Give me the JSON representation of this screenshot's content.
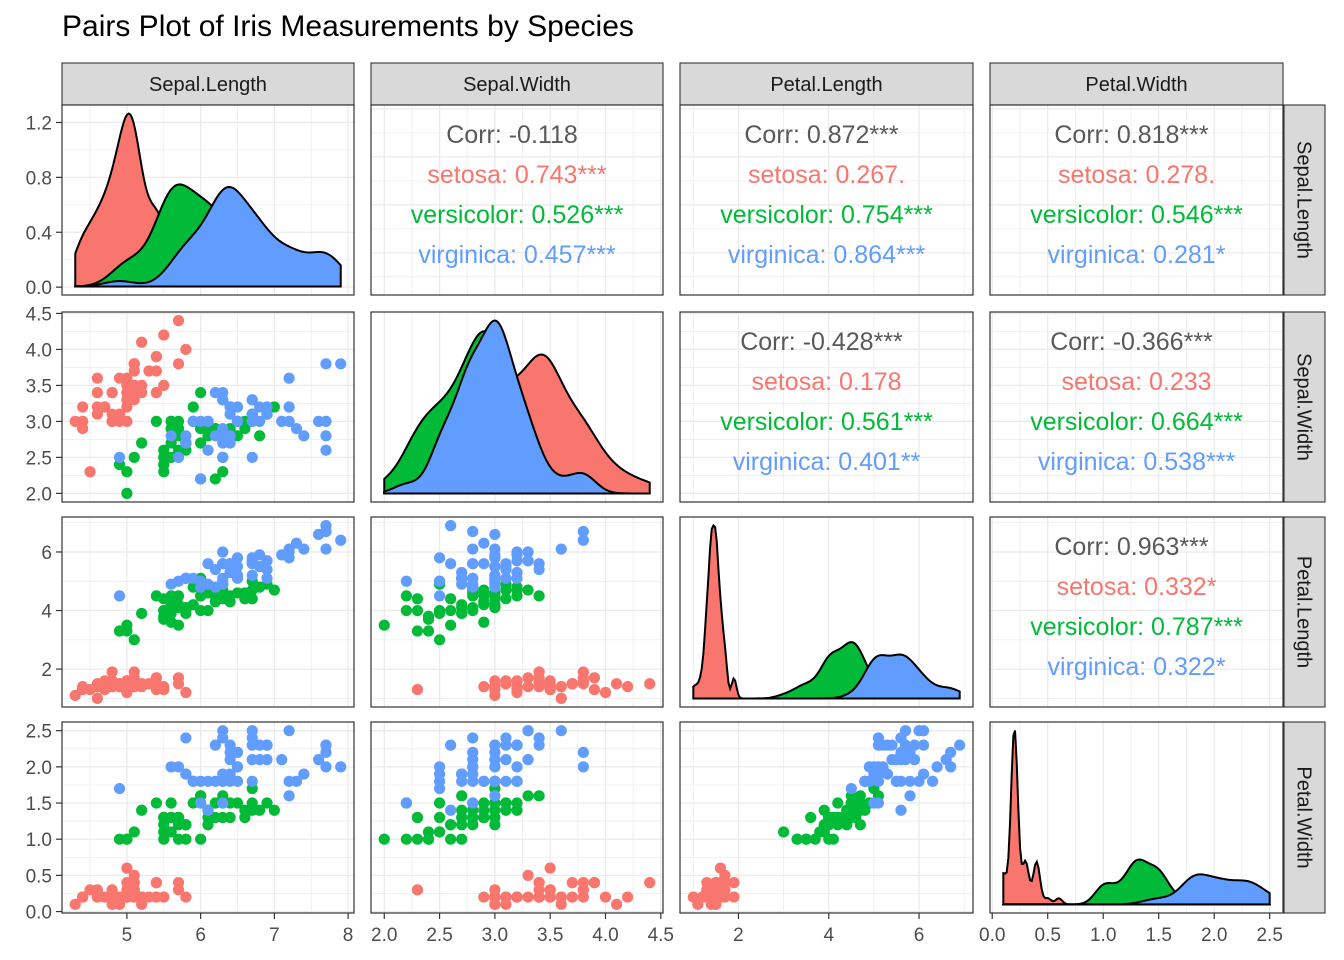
{
  "chart_data": {
    "type": "scatter",
    "title": "Pairs Plot of Iris Measurements by Species",
    "variables": [
      "Sepal.Length",
      "Sepal.Width",
      "Petal.Length",
      "Petal.Width"
    ],
    "species": [
      {
        "name": "setosa",
        "color": "#F8766D"
      },
      {
        "name": "versicolor",
        "color": "#00BA38"
      },
      {
        "name": "virginica",
        "color": "#619CFF"
      }
    ],
    "axes": {
      "Sepal.Length": {
        "range": [
          4.3,
          7.9
        ],
        "ticks": [
          5,
          6,
          7,
          8
        ],
        "tick_labels": [
          "5",
          "6",
          "7",
          "8"
        ]
      },
      "Sepal.Width": {
        "range": [
          2.0,
          4.4
        ],
        "ticks": [
          2.0,
          2.5,
          3.0,
          3.5,
          4.0,
          4.5
        ],
        "tick_labels": [
          "2.0",
          "2.5",
          "3.0",
          "3.5",
          "4.0",
          "4.5"
        ]
      },
      "Petal.Length": {
        "range": [
          1.0,
          6.9
        ],
        "ticks": [
          2,
          4,
          6
        ],
        "tick_labels": [
          "2",
          "4",
          "6"
        ]
      },
      "Petal.Width": {
        "range": [
          0.1,
          2.5
        ],
        "ticks": [
          0.0,
          0.5,
          1.0,
          1.5,
          2.0,
          2.5
        ],
        "tick_labels": [
          "0.0",
          "0.5",
          "1.0",
          "1.5",
          "2.0",
          "2.5"
        ]
      }
    },
    "density_axis": {
      "range": [
        0,
        1.27
      ],
      "ticks": [
        0.0,
        0.4,
        0.8,
        1.2
      ],
      "tick_labels": [
        "0.0",
        "0.4",
        "0.8",
        "1.2"
      ]
    },
    "correlations": [
      {
        "row": "Sepal.Length",
        "col": "Sepal.Width",
        "overall": "Corr: -0.118",
        "setosa": "setosa: 0.743***",
        "versicolor": "versicolor: 0.526***",
        "virginica": "virginica: 0.457***"
      },
      {
        "row": "Sepal.Length",
        "col": "Petal.Length",
        "overall": "Corr: 0.872***",
        "setosa": "setosa: 0.267.",
        "versicolor": "versicolor: 0.754***",
        "virginica": "virginica: 0.864***"
      },
      {
        "row": "Sepal.Length",
        "col": "Petal.Width",
        "overall": "Corr: 0.818***",
        "setosa": "setosa: 0.278.",
        "versicolor": "versicolor: 0.546***",
        "virginica": "virginica: 0.281*"
      },
      {
        "row": "Sepal.Width",
        "col": "Petal.Length",
        "overall": "Corr: -0.428***",
        "setosa": "setosa: 0.178",
        "versicolor": "versicolor: 0.561***",
        "virginica": "virginica: 0.401**"
      },
      {
        "row": "Sepal.Width",
        "col": "Petal.Width",
        "overall": "Corr: -0.366***",
        "setosa": "setosa: 0.233",
        "versicolor": "versicolor: 0.664***",
        "virginica": "virginica: 0.538***"
      },
      {
        "row": "Petal.Length",
        "col": "Petal.Width",
        "overall": "Corr: 0.963***",
        "setosa": "setosa: 0.332*",
        "versicolor": "versicolor: 0.787***",
        "virginica": "virginica: 0.322*"
      }
    ],
    "data": {
      "setosa": [
        [
          5.1,
          3.5,
          1.4,
          0.2
        ],
        [
          4.9,
          3.0,
          1.4,
          0.2
        ],
        [
          4.7,
          3.2,
          1.3,
          0.2
        ],
        [
          4.6,
          3.1,
          1.5,
          0.2
        ],
        [
          5.0,
          3.6,
          1.4,
          0.2
        ],
        [
          5.4,
          3.9,
          1.7,
          0.4
        ],
        [
          4.6,
          3.4,
          1.4,
          0.3
        ],
        [
          5.0,
          3.4,
          1.5,
          0.2
        ],
        [
          4.4,
          2.9,
          1.4,
          0.2
        ],
        [
          4.9,
          3.1,
          1.5,
          0.1
        ],
        [
          5.4,
          3.7,
          1.5,
          0.2
        ],
        [
          4.8,
          3.4,
          1.6,
          0.2
        ],
        [
          4.8,
          3.0,
          1.4,
          0.1
        ],
        [
          4.3,
          3.0,
          1.1,
          0.1
        ],
        [
          5.8,
          4.0,
          1.2,
          0.2
        ],
        [
          5.7,
          4.4,
          1.5,
          0.4
        ],
        [
          5.4,
          3.9,
          1.3,
          0.4
        ],
        [
          5.1,
          3.5,
          1.4,
          0.3
        ],
        [
          5.7,
          3.8,
          1.7,
          0.3
        ],
        [
          5.1,
          3.8,
          1.5,
          0.3
        ],
        [
          5.4,
          3.4,
          1.7,
          0.2
        ],
        [
          5.1,
          3.7,
          1.5,
          0.4
        ],
        [
          4.6,
          3.6,
          1.0,
          0.2
        ],
        [
          5.1,
          3.3,
          1.7,
          0.5
        ],
        [
          4.8,
          3.4,
          1.9,
          0.2
        ],
        [
          5.0,
          3.0,
          1.6,
          0.2
        ],
        [
          5.0,
          3.4,
          1.6,
          0.4
        ],
        [
          5.2,
          3.5,
          1.5,
          0.2
        ],
        [
          5.2,
          3.4,
          1.4,
          0.2
        ],
        [
          4.7,
          3.2,
          1.6,
          0.2
        ],
        [
          4.8,
          3.1,
          1.6,
          0.2
        ],
        [
          5.4,
          3.4,
          1.5,
          0.4
        ],
        [
          5.2,
          4.1,
          1.5,
          0.1
        ],
        [
          5.5,
          4.2,
          1.4,
          0.2
        ],
        [
          4.9,
          3.1,
          1.5,
          0.2
        ],
        [
          5.0,
          3.2,
          1.2,
          0.2
        ],
        [
          5.5,
          3.5,
          1.3,
          0.2
        ],
        [
          4.9,
          3.6,
          1.4,
          0.1
        ],
        [
          4.4,
          3.0,
          1.3,
          0.2
        ],
        [
          5.1,
          3.4,
          1.5,
          0.2
        ],
        [
          5.0,
          3.5,
          1.3,
          0.3
        ],
        [
          4.5,
          2.3,
          1.3,
          0.3
        ],
        [
          4.4,
          3.2,
          1.3,
          0.2
        ],
        [
          5.0,
          3.5,
          1.6,
          0.6
        ],
        [
          5.1,
          3.8,
          1.9,
          0.4
        ],
        [
          4.8,
          3.0,
          1.4,
          0.3
        ],
        [
          5.1,
          3.8,
          1.6,
          0.2
        ],
        [
          4.6,
          3.2,
          1.4,
          0.2
        ],
        [
          5.3,
          3.7,
          1.5,
          0.2
        ],
        [
          5.0,
          3.3,
          1.4,
          0.2
        ]
      ],
      "versicolor": [
        [
          7.0,
          3.2,
          4.7,
          1.4
        ],
        [
          6.4,
          3.2,
          4.5,
          1.5
        ],
        [
          6.9,
          3.1,
          4.9,
          1.5
        ],
        [
          5.5,
          2.3,
          4.0,
          1.3
        ],
        [
          6.5,
          2.8,
          4.6,
          1.5
        ],
        [
          5.7,
          2.8,
          4.5,
          1.3
        ],
        [
          6.3,
          3.3,
          4.7,
          1.6
        ],
        [
          4.9,
          2.4,
          3.3,
          1.0
        ],
        [
          6.6,
          2.9,
          4.6,
          1.3
        ],
        [
          5.2,
          2.7,
          3.9,
          1.4
        ],
        [
          5.0,
          2.0,
          3.5,
          1.0
        ],
        [
          5.9,
          3.0,
          4.2,
          1.5
        ],
        [
          6.0,
          2.2,
          4.0,
          1.0
        ],
        [
          6.1,
          2.9,
          4.7,
          1.4
        ],
        [
          5.6,
          2.9,
          3.6,
          1.3
        ],
        [
          6.7,
          3.1,
          4.4,
          1.4
        ],
        [
          5.6,
          3.0,
          4.5,
          1.5
        ],
        [
          5.8,
          2.7,
          4.1,
          1.0
        ],
        [
          6.2,
          2.2,
          4.5,
          1.5
        ],
        [
          5.6,
          2.5,
          3.9,
          1.1
        ],
        [
          5.9,
          3.2,
          4.8,
          1.8
        ],
        [
          6.1,
          2.8,
          4.0,
          1.3
        ],
        [
          6.3,
          2.5,
          4.9,
          1.5
        ],
        [
          6.1,
          2.8,
          4.7,
          1.2
        ],
        [
          6.4,
          2.9,
          4.3,
          1.3
        ],
        [
          6.6,
          3.0,
          4.4,
          1.4
        ],
        [
          6.8,
          2.8,
          4.8,
          1.4
        ],
        [
          6.7,
          3.0,
          5.0,
          1.7
        ],
        [
          6.0,
          2.9,
          4.5,
          1.5
        ],
        [
          5.7,
          2.6,
          3.5,
          1.0
        ],
        [
          5.5,
          2.4,
          3.8,
          1.1
        ],
        [
          5.5,
          2.4,
          3.7,
          1.0
        ],
        [
          5.8,
          2.7,
          3.9,
          1.2
        ],
        [
          6.0,
          2.7,
          5.1,
          1.6
        ],
        [
          5.4,
          3.0,
          4.5,
          1.5
        ],
        [
          6.0,
          3.4,
          4.5,
          1.6
        ],
        [
          6.7,
          3.1,
          4.7,
          1.5
        ],
        [
          6.3,
          2.3,
          4.4,
          1.3
        ],
        [
          5.6,
          3.0,
          4.1,
          1.3
        ],
        [
          5.5,
          2.5,
          4.0,
          1.3
        ],
        [
          5.5,
          2.6,
          4.4,
          1.2
        ],
        [
          6.1,
          3.0,
          4.6,
          1.4
        ],
        [
          5.8,
          2.6,
          4.0,
          1.2
        ],
        [
          5.0,
          2.3,
          3.3,
          1.0
        ],
        [
          5.6,
          2.7,
          4.2,
          1.3
        ],
        [
          5.7,
          3.0,
          4.2,
          1.2
        ],
        [
          5.7,
          2.9,
          4.2,
          1.3
        ],
        [
          6.2,
          2.9,
          4.3,
          1.3
        ],
        [
          5.1,
          2.5,
          3.0,
          1.1
        ],
        [
          5.7,
          2.8,
          4.1,
          1.3
        ]
      ],
      "virginica": [
        [
          6.3,
          3.3,
          6.0,
          2.5
        ],
        [
          5.8,
          2.7,
          5.1,
          1.9
        ],
        [
          7.1,
          3.0,
          5.9,
          2.1
        ],
        [
          6.3,
          2.9,
          5.6,
          1.8
        ],
        [
          6.5,
          3.0,
          5.8,
          2.2
        ],
        [
          7.6,
          3.0,
          6.6,
          2.1
        ],
        [
          4.9,
          2.5,
          4.5,
          1.7
        ],
        [
          7.3,
          2.9,
          6.3,
          1.8
        ],
        [
          6.7,
          2.5,
          5.8,
          1.8
        ],
        [
          7.2,
          3.6,
          6.1,
          2.5
        ],
        [
          6.5,
          3.2,
          5.1,
          2.0
        ],
        [
          6.4,
          2.7,
          5.3,
          1.9
        ],
        [
          6.8,
          3.0,
          5.5,
          2.1
        ],
        [
          5.7,
          2.5,
          5.0,
          2.0
        ],
        [
          5.8,
          2.8,
          5.1,
          2.4
        ],
        [
          6.4,
          3.2,
          5.3,
          2.3
        ],
        [
          6.5,
          3.0,
          5.5,
          1.8
        ],
        [
          7.7,
          3.8,
          6.7,
          2.2
        ],
        [
          7.7,
          2.6,
          6.9,
          2.3
        ],
        [
          6.0,
          2.2,
          5.0,
          1.5
        ],
        [
          6.9,
          3.2,
          5.7,
          2.3
        ],
        [
          5.6,
          2.8,
          4.9,
          2.0
        ],
        [
          7.7,
          2.8,
          6.7,
          2.0
        ],
        [
          6.3,
          2.7,
          4.9,
          1.8
        ],
        [
          6.7,
          3.3,
          5.7,
          2.1
        ],
        [
          7.2,
          3.2,
          6.0,
          1.8
        ],
        [
          6.2,
          2.8,
          4.8,
          1.8
        ],
        [
          6.1,
          3.0,
          4.9,
          1.8
        ],
        [
          6.4,
          2.8,
          5.6,
          2.1
        ],
        [
          7.2,
          3.0,
          5.8,
          1.6
        ],
        [
          7.4,
          2.8,
          6.1,
          1.9
        ],
        [
          7.9,
          3.8,
          6.4,
          2.0
        ],
        [
          6.4,
          2.8,
          5.6,
          2.2
        ],
        [
          6.3,
          2.8,
          5.1,
          1.5
        ],
        [
          6.1,
          2.6,
          5.6,
          1.4
        ],
        [
          7.7,
          3.0,
          6.1,
          2.3
        ],
        [
          6.3,
          3.4,
          5.6,
          2.4
        ],
        [
          6.4,
          3.1,
          5.5,
          1.8
        ],
        [
          6.0,
          3.0,
          4.8,
          1.8
        ],
        [
          6.9,
          3.1,
          5.4,
          2.1
        ],
        [
          6.7,
          3.1,
          5.6,
          2.4
        ],
        [
          6.9,
          3.1,
          5.1,
          2.3
        ],
        [
          5.8,
          2.7,
          5.1,
          1.9
        ],
        [
          6.8,
          3.2,
          5.9,
          2.3
        ],
        [
          6.7,
          3.3,
          5.7,
          2.5
        ],
        [
          6.7,
          3.0,
          5.2,
          2.3
        ],
        [
          6.3,
          2.5,
          5.0,
          1.9
        ],
        [
          6.5,
          3.0,
          5.2,
          2.0
        ],
        [
          6.2,
          3.4,
          5.4,
          2.3
        ],
        [
          5.9,
          3.0,
          5.1,
          1.8
        ]
      ]
    }
  }
}
